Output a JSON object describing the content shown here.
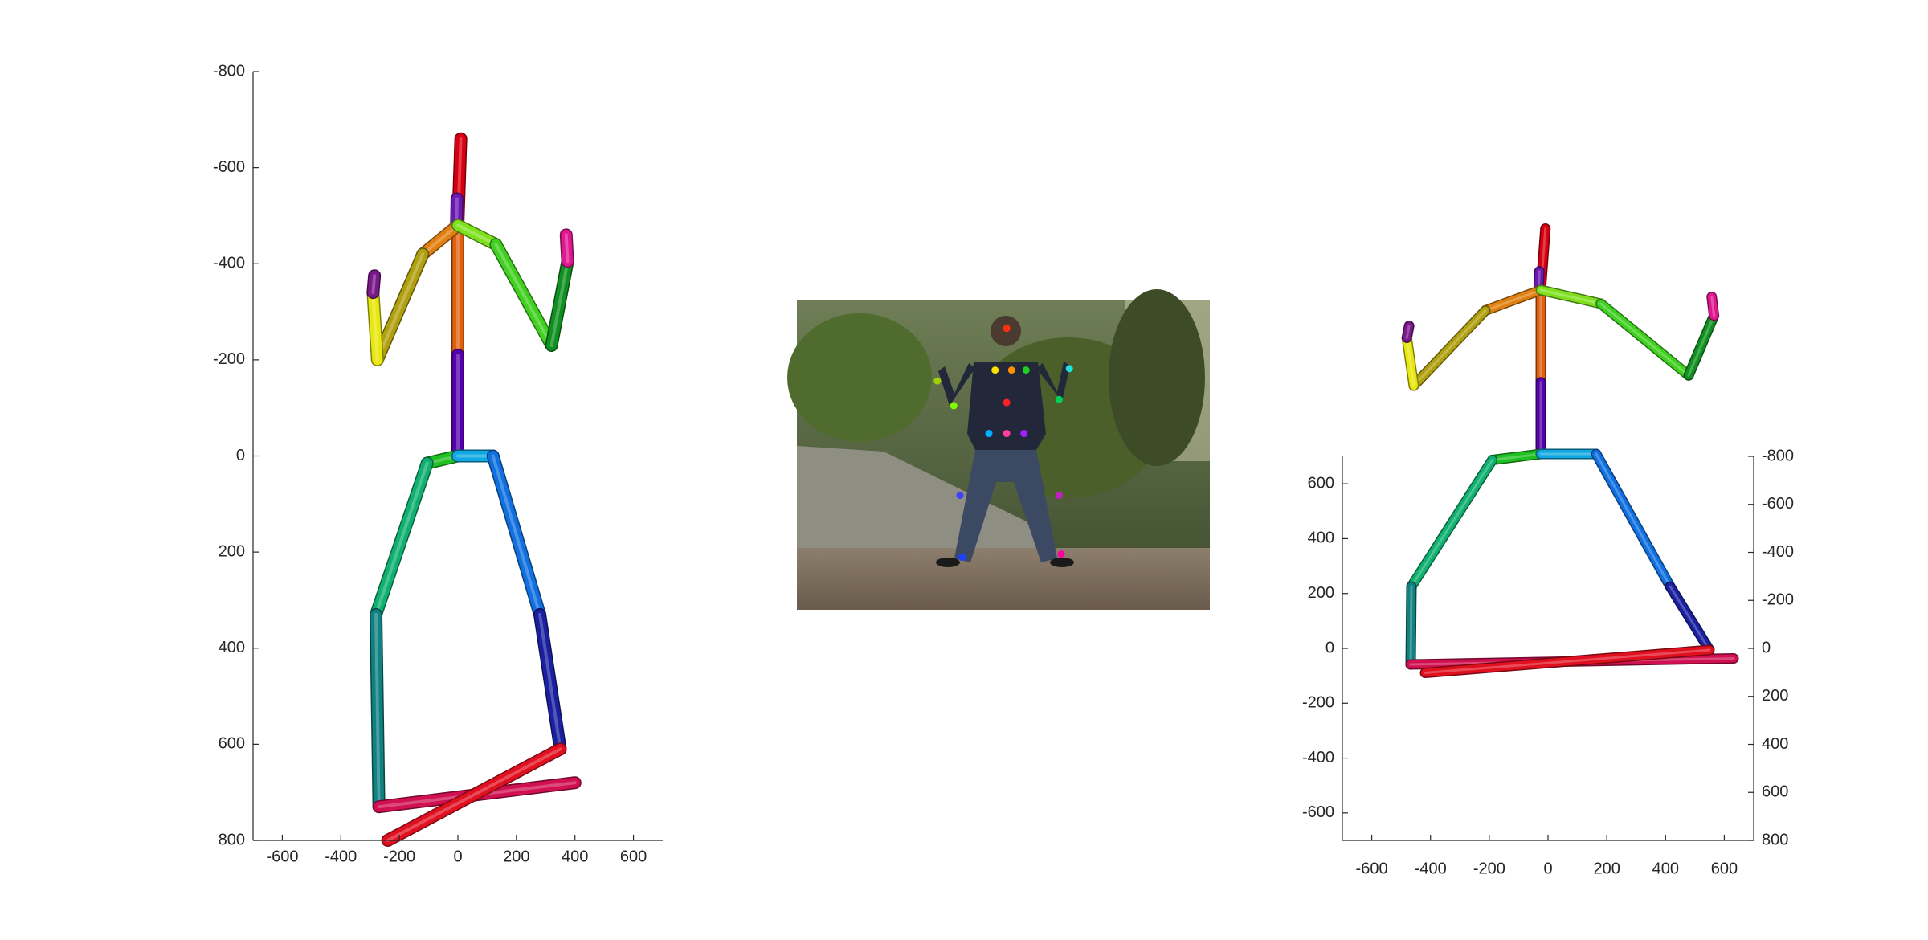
{
  "chart_data": [
    {
      "type": "3d-skeleton",
      "view": "front",
      "title": "",
      "xlabel": "",
      "ylabel": "",
      "x_ticks": [
        "-600",
        "-400",
        "-200",
        "0",
        "200",
        "400",
        "600"
      ],
      "y_ticks": [
        "-800",
        "-600",
        "-400",
        "-200",
        "0",
        "200",
        "400",
        "600",
        "800"
      ],
      "xlim": [
        -700,
        700
      ],
      "ylim": [
        -800,
        800
      ],
      "y_reversed": true,
      "grid": false,
      "legend": "none",
      "bones": [
        {
          "name": "neck-head",
          "from": [
            0,
            -480
          ],
          "to": [
            10,
            -660
          ],
          "color": "#d80010"
        },
        {
          "name": "head-top",
          "from": [
            -5,
            -470
          ],
          "to": [
            -3,
            -535
          ],
          "color": "#6a18b0"
        },
        {
          "name": "spine",
          "from": [
            0,
            -480
          ],
          "to": [
            0,
            -210
          ],
          "color": "#e06010"
        },
        {
          "name": "spine-lower",
          "from": [
            0,
            -210
          ],
          "to": [
            0,
            0
          ],
          "color": "#5500aa"
        },
        {
          "name": "right-shoulder",
          "from": [
            0,
            -480
          ],
          "to": [
            -120,
            -420
          ],
          "color": "#e08010"
        },
        {
          "name": "right-upper-arm",
          "from": [
            -120,
            -420
          ],
          "to": [
            -275,
            -200
          ],
          "color": "#b0a010"
        },
        {
          "name": "right-forearm",
          "from": [
            -275,
            -200
          ],
          "to": [
            -290,
            -340
          ],
          "color": "#e8e810"
        },
        {
          "name": "right-hand",
          "from": [
            -290,
            -340
          ],
          "to": [
            -285,
            -375
          ],
          "color": "#7a1a8a"
        },
        {
          "name": "left-shoulder",
          "from": [
            0,
            -480
          ],
          "to": [
            130,
            -440
          ],
          "color": "#80e020"
        },
        {
          "name": "left-upper-arm",
          "from": [
            130,
            -440
          ],
          "to": [
            320,
            -230
          ],
          "color": "#40d020"
        },
        {
          "name": "left-forearm",
          "from": [
            320,
            -230
          ],
          "to": [
            375,
            -405
          ],
          "color": "#109020"
        },
        {
          "name": "left-hand",
          "from": [
            375,
            -405
          ],
          "to": [
            370,
            -460
          ],
          "color": "#e01890"
        },
        {
          "name": "right-hip",
          "from": [
            0,
            0
          ],
          "to": [
            -105,
            15
          ],
          "color": "#20c020"
        },
        {
          "name": "left-hip",
          "from": [
            0,
            0
          ],
          "to": [
            120,
            0
          ],
          "color": "#10a8e0"
        },
        {
          "name": "right-thigh",
          "from": [
            -105,
            15
          ],
          "to": [
            -280,
            330
          ],
          "color": "#10b070"
        },
        {
          "name": "right-shin",
          "from": [
            -280,
            330
          ],
          "to": [
            -270,
            730
          ],
          "color": "#108080"
        },
        {
          "name": "left-thigh",
          "from": [
            120,
            0
          ],
          "to": [
            280,
            330
          ],
          "color": "#1070e0"
        },
        {
          "name": "left-shin",
          "from": [
            280,
            330
          ],
          "to": [
            350,
            610
          ],
          "color": "#1a20a0"
        },
        {
          "name": "right-foot",
          "from": [
            -270,
            730
          ],
          "to": [
            400,
            680
          ],
          "color": "#d01050"
        },
        {
          "name": "left-foot",
          "from": [
            350,
            610
          ],
          "to": [
            -240,
            800
          ],
          "color": "#e01020"
        }
      ]
    },
    {
      "type": "image",
      "content": "input photograph with 2D keypoints",
      "keypoints": [
        {
          "u": 0.508,
          "v": 0.09,
          "color": "#ff3010"
        },
        {
          "u": 0.48,
          "v": 0.225,
          "color": "#ffe000"
        },
        {
          "u": 0.52,
          "v": 0.225,
          "color": "#ff9000"
        },
        {
          "u": 0.555,
          "v": 0.225,
          "color": "#20d020"
        },
        {
          "u": 0.34,
          "v": 0.26,
          "color": "#a0d000"
        },
        {
          "u": 0.66,
          "v": 0.22,
          "color": "#20e0e0"
        },
        {
          "u": 0.38,
          "v": 0.34,
          "color": "#80ff00"
        },
        {
          "u": 0.635,
          "v": 0.32,
          "color": "#00d060"
        },
        {
          "u": 0.508,
          "v": 0.33,
          "color": "#ff2020"
        },
        {
          "u": 0.465,
          "v": 0.43,
          "color": "#00b0ff"
        },
        {
          "u": 0.508,
          "v": 0.43,
          "color": "#ff40a0"
        },
        {
          "u": 0.55,
          "v": 0.43,
          "color": "#a020ff"
        },
        {
          "u": 0.395,
          "v": 0.63,
          "color": "#4040ff"
        },
        {
          "u": 0.635,
          "v": 0.63,
          "color": "#c020c0"
        },
        {
          "u": 0.4,
          "v": 0.83,
          "color": "#2040ff"
        },
        {
          "u": 0.64,
          "v": 0.82,
          "color": "#ff00a0"
        }
      ]
    },
    {
      "type": "3d-skeleton",
      "view": "oblique",
      "title": "",
      "xlabel": "",
      "ylabel": "",
      "zlabel": "",
      "x_ticks": [
        "-600",
        "-400",
        "-200",
        "0",
        "200",
        "400",
        "600"
      ],
      "y_ticks": [
        "-600",
        "-400",
        "-200",
        "0",
        "200",
        "400",
        "600"
      ],
      "z_ticks": [
        "-800",
        "-600",
        "-400",
        "-200",
        "0",
        "200",
        "400",
        "600",
        "800"
      ],
      "xlim": [
        -700,
        700
      ],
      "ylim": [
        -700,
        700
      ],
      "zlim": [
        -800,
        800
      ],
      "grid": false,
      "legend": "none"
    }
  ]
}
